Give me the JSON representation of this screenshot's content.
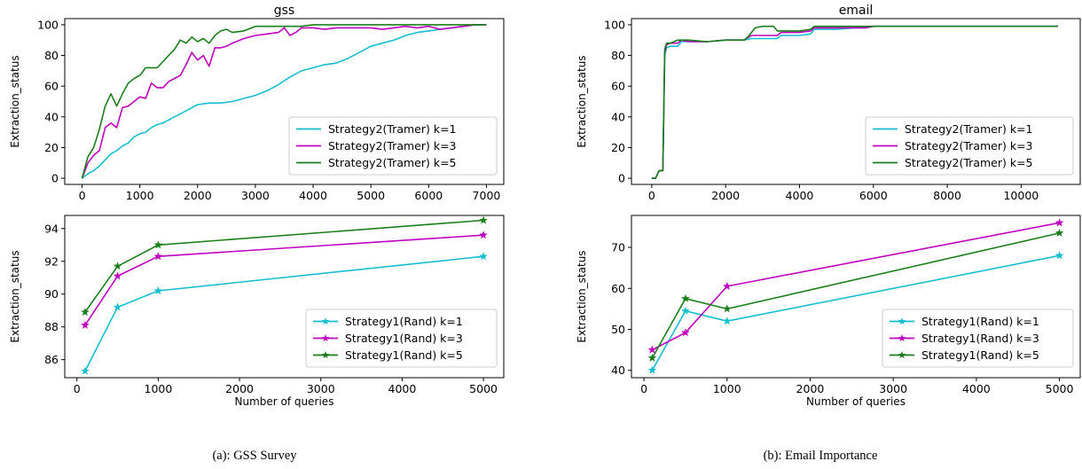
{
  "captions": [
    "(a): GSS Survey",
    "(b): Email Importance"
  ],
  "colors": {
    "k1": "#17becf",
    "k3": "#bf00bf",
    "k5": "#1a7f1a"
  },
  "chart_data": [
    {
      "id": "gss-top",
      "type": "line",
      "title": "gss",
      "xlabel": "",
      "ylabel": "Extraction_status",
      "xlim": [
        -300,
        7300
      ],
      "ylim": [
        -4,
        104
      ],
      "xticks": [
        0,
        1000,
        2000,
        3000,
        4000,
        5000,
        6000,
        7000
      ],
      "yticks": [
        0,
        20,
        40,
        60,
        80,
        100
      ],
      "legend": "lower-right",
      "series": [
        {
          "name": "Strategy2(Tramer) k=1",
          "color": "#17becf",
          "x": [
            0,
            100,
            200,
            300,
            400,
            500,
            600,
            700,
            800,
            900,
            1000,
            1100,
            1200,
            1300,
            1400,
            1500,
            1600,
            1700,
            1800,
            1900,
            2000,
            2200,
            2400,
            2600,
            2800,
            3000,
            3200,
            3400,
            3600,
            3800,
            4000,
            4200,
            4400,
            4600,
            4800,
            5000,
            5200,
            5400,
            5600,
            5800,
            6000,
            6200,
            6400,
            6600,
            6800,
            7000
          ],
          "y": [
            0,
            3,
            5,
            8,
            12,
            16,
            18,
            21,
            23,
            27,
            29,
            30,
            33,
            35,
            36,
            38,
            40,
            42,
            44,
            46,
            48,
            49,
            49,
            50,
            52,
            54,
            57,
            61,
            66,
            70,
            72,
            74,
            75,
            78,
            82,
            86,
            88,
            90,
            93,
            95,
            96,
            97,
            98,
            99,
            100,
            100
          ]
        },
        {
          "name": "Strategy2(Tramer) k=3",
          "color": "#bf00bf",
          "x": [
            0,
            100,
            200,
            300,
            400,
            500,
            600,
            700,
            800,
            900,
            1000,
            1100,
            1200,
            1300,
            1400,
            1500,
            1600,
            1700,
            1800,
            1900,
            2000,
            2100,
            2200,
            2300,
            2400,
            2500,
            2600,
            2800,
            3000,
            3200,
            3400,
            3500,
            3600,
            3700,
            3800,
            4000,
            4200,
            4400,
            4600,
            4800,
            5000,
            5200,
            5400,
            5600,
            5800,
            6000,
            6200,
            6400,
            6600,
            6800,
            7000
          ],
          "y": [
            0,
            10,
            15,
            18,
            33,
            36,
            33,
            46,
            47,
            50,
            53,
            52,
            62,
            59,
            59,
            63,
            65,
            67,
            74,
            82,
            77,
            80,
            73,
            85,
            85,
            86,
            88,
            91,
            93,
            94,
            95,
            98,
            93,
            95,
            98,
            98,
            97,
            98,
            98,
            98,
            98,
            97,
            98,
            99,
            98,
            99,
            97,
            98,
            99,
            100,
            100
          ]
        },
        {
          "name": "Strategy2(Tramer) k=5",
          "color": "#1a7f1a",
          "x": [
            0,
            100,
            200,
            300,
            400,
            500,
            600,
            700,
            800,
            900,
            1000,
            1100,
            1200,
            1300,
            1400,
            1500,
            1600,
            1700,
            1800,
            1900,
            2000,
            2100,
            2200,
            2300,
            2400,
            2500,
            2600,
            2800,
            3000,
            3200,
            3400,
            3600,
            3800,
            4000,
            5000,
            6000,
            7000
          ],
          "y": [
            0,
            14,
            20,
            32,
            47,
            55,
            47,
            55,
            62,
            65,
            67,
            72,
            72,
            72,
            76,
            80,
            84,
            90,
            88,
            92,
            89,
            91,
            88,
            93,
            96,
            97,
            95,
            96,
            99,
            99,
            99,
            99,
            99,
            100,
            100,
            100,
            100
          ]
        }
      ]
    },
    {
      "id": "email-top",
      "type": "line",
      "title": "email",
      "xlabel": "",
      "ylabel": "Extraction_status",
      "xlim": [
        -550,
        11600
      ],
      "ylim": [
        -4,
        104
      ],
      "xticks": [
        0,
        2000,
        4000,
        6000,
        8000,
        10000
      ],
      "yticks": [
        0,
        20,
        40,
        60,
        80,
        100
      ],
      "legend": "lower-right",
      "series": [
        {
          "name": "Strategy2(Tramer) k=1",
          "color": "#17becf",
          "x": [
            0,
            100,
            200,
            300,
            350,
            400,
            500,
            700,
            800,
            1000,
            1500,
            2000,
            2500,
            2700,
            3000,
            3400,
            3500,
            4000,
            4300,
            4400,
            5000,
            5500,
            5800,
            6000,
            8000,
            11000
          ],
          "y": [
            0,
            0,
            5,
            5,
            80,
            85,
            86,
            86,
            89,
            89,
            89,
            90,
            90,
            91,
            91,
            91,
            93,
            93,
            94,
            97,
            97,
            98,
            98,
            99,
            99,
            99
          ]
        },
        {
          "name": "Strategy2(Tramer) k=3",
          "color": "#bf00bf",
          "x": [
            0,
            100,
            200,
            300,
            350,
            400,
            500,
            700,
            800,
            1000,
            1500,
            2000,
            2500,
            2700,
            3000,
            3400,
            3500,
            4000,
            4300,
            4400,
            5000,
            5800,
            6000,
            8000,
            11000
          ],
          "y": [
            0,
            0,
            5,
            5,
            82,
            87,
            88,
            88,
            90,
            89,
            89,
            90,
            90,
            93,
            93,
            93,
            95,
            95,
            96,
            98,
            98,
            98,
            99,
            99,
            99
          ]
        },
        {
          "name": "Strategy2(Tramer) k=5",
          "color": "#1a7f1a",
          "x": [
            0,
            100,
            200,
            300,
            350,
            400,
            500,
            700,
            800,
            1000,
            1500,
            2000,
            2500,
            2600,
            2800,
            3000,
            3300,
            3400,
            3500,
            4000,
            4300,
            4400,
            5000,
            6000,
            8000,
            11000
          ],
          "y": [
            0,
            0,
            5,
            5,
            84,
            88,
            88,
            90,
            90,
            90,
            89,
            90,
            90,
            92,
            98,
            99,
            99,
            96,
            96,
            96,
            97,
            99,
            99,
            99,
            99,
            99
          ]
        }
      ]
    },
    {
      "id": "gss-bottom",
      "type": "line",
      "title": "",
      "xlabel": "Number of queries",
      "ylabel": "Extraction_status",
      "xlim": [
        -150,
        5250
      ],
      "ylim": [
        84.9,
        94.8
      ],
      "xticks": [
        0,
        1000,
        2000,
        3000,
        4000,
        5000
      ],
      "yticks": [
        86,
        88,
        90,
        92,
        94
      ],
      "legend": "lower-right",
      "series": [
        {
          "name": "Strategy1(Rand) k=1",
          "color": "#17becf",
          "x": [
            100,
            500,
            1000,
            5000
          ],
          "y": [
            85.3,
            89.2,
            90.2,
            92.3
          ]
        },
        {
          "name": "Strategy1(Rand) k=3",
          "color": "#bf00bf",
          "x": [
            100,
            500,
            1000,
            5000
          ],
          "y": [
            88.1,
            91.1,
            92.3,
            93.6
          ]
        },
        {
          "name": "Strategy1(Rand) k=5",
          "color": "#1a7f1a",
          "x": [
            100,
            500,
            1000,
            5000
          ],
          "y": [
            88.9,
            91.7,
            93.0,
            94.5
          ]
        }
      ]
    },
    {
      "id": "email-bottom",
      "type": "line",
      "title": "",
      "xlabel": "Number of queries",
      "ylabel": "Extraction_status",
      "xlim": [
        -150,
        5250
      ],
      "ylim": [
        38.2,
        77.8
      ],
      "xticks": [
        0,
        1000,
        2000,
        3000,
        4000,
        5000
      ],
      "yticks": [
        40,
        50,
        60,
        70
      ],
      "legend": "lower-right",
      "series": [
        {
          "name": "Strategy1(Rand) k=1",
          "color": "#17becf",
          "x": [
            100,
            500,
            1000,
            5000
          ],
          "y": [
            40.0,
            54.5,
            52.0,
            68.0
          ]
        },
        {
          "name": "Strategy1(Rand) k=3",
          "color": "#bf00bf",
          "x": [
            100,
            500,
            1000,
            5000
          ],
          "y": [
            45.0,
            49.2,
            60.5,
            76.0
          ]
        },
        {
          "name": "Strategy1(Rand) k=5",
          "color": "#1a7f1a",
          "x": [
            100,
            500,
            1000,
            5000
          ],
          "y": [
            43.0,
            57.5,
            55.0,
            73.5
          ]
        }
      ]
    }
  ]
}
